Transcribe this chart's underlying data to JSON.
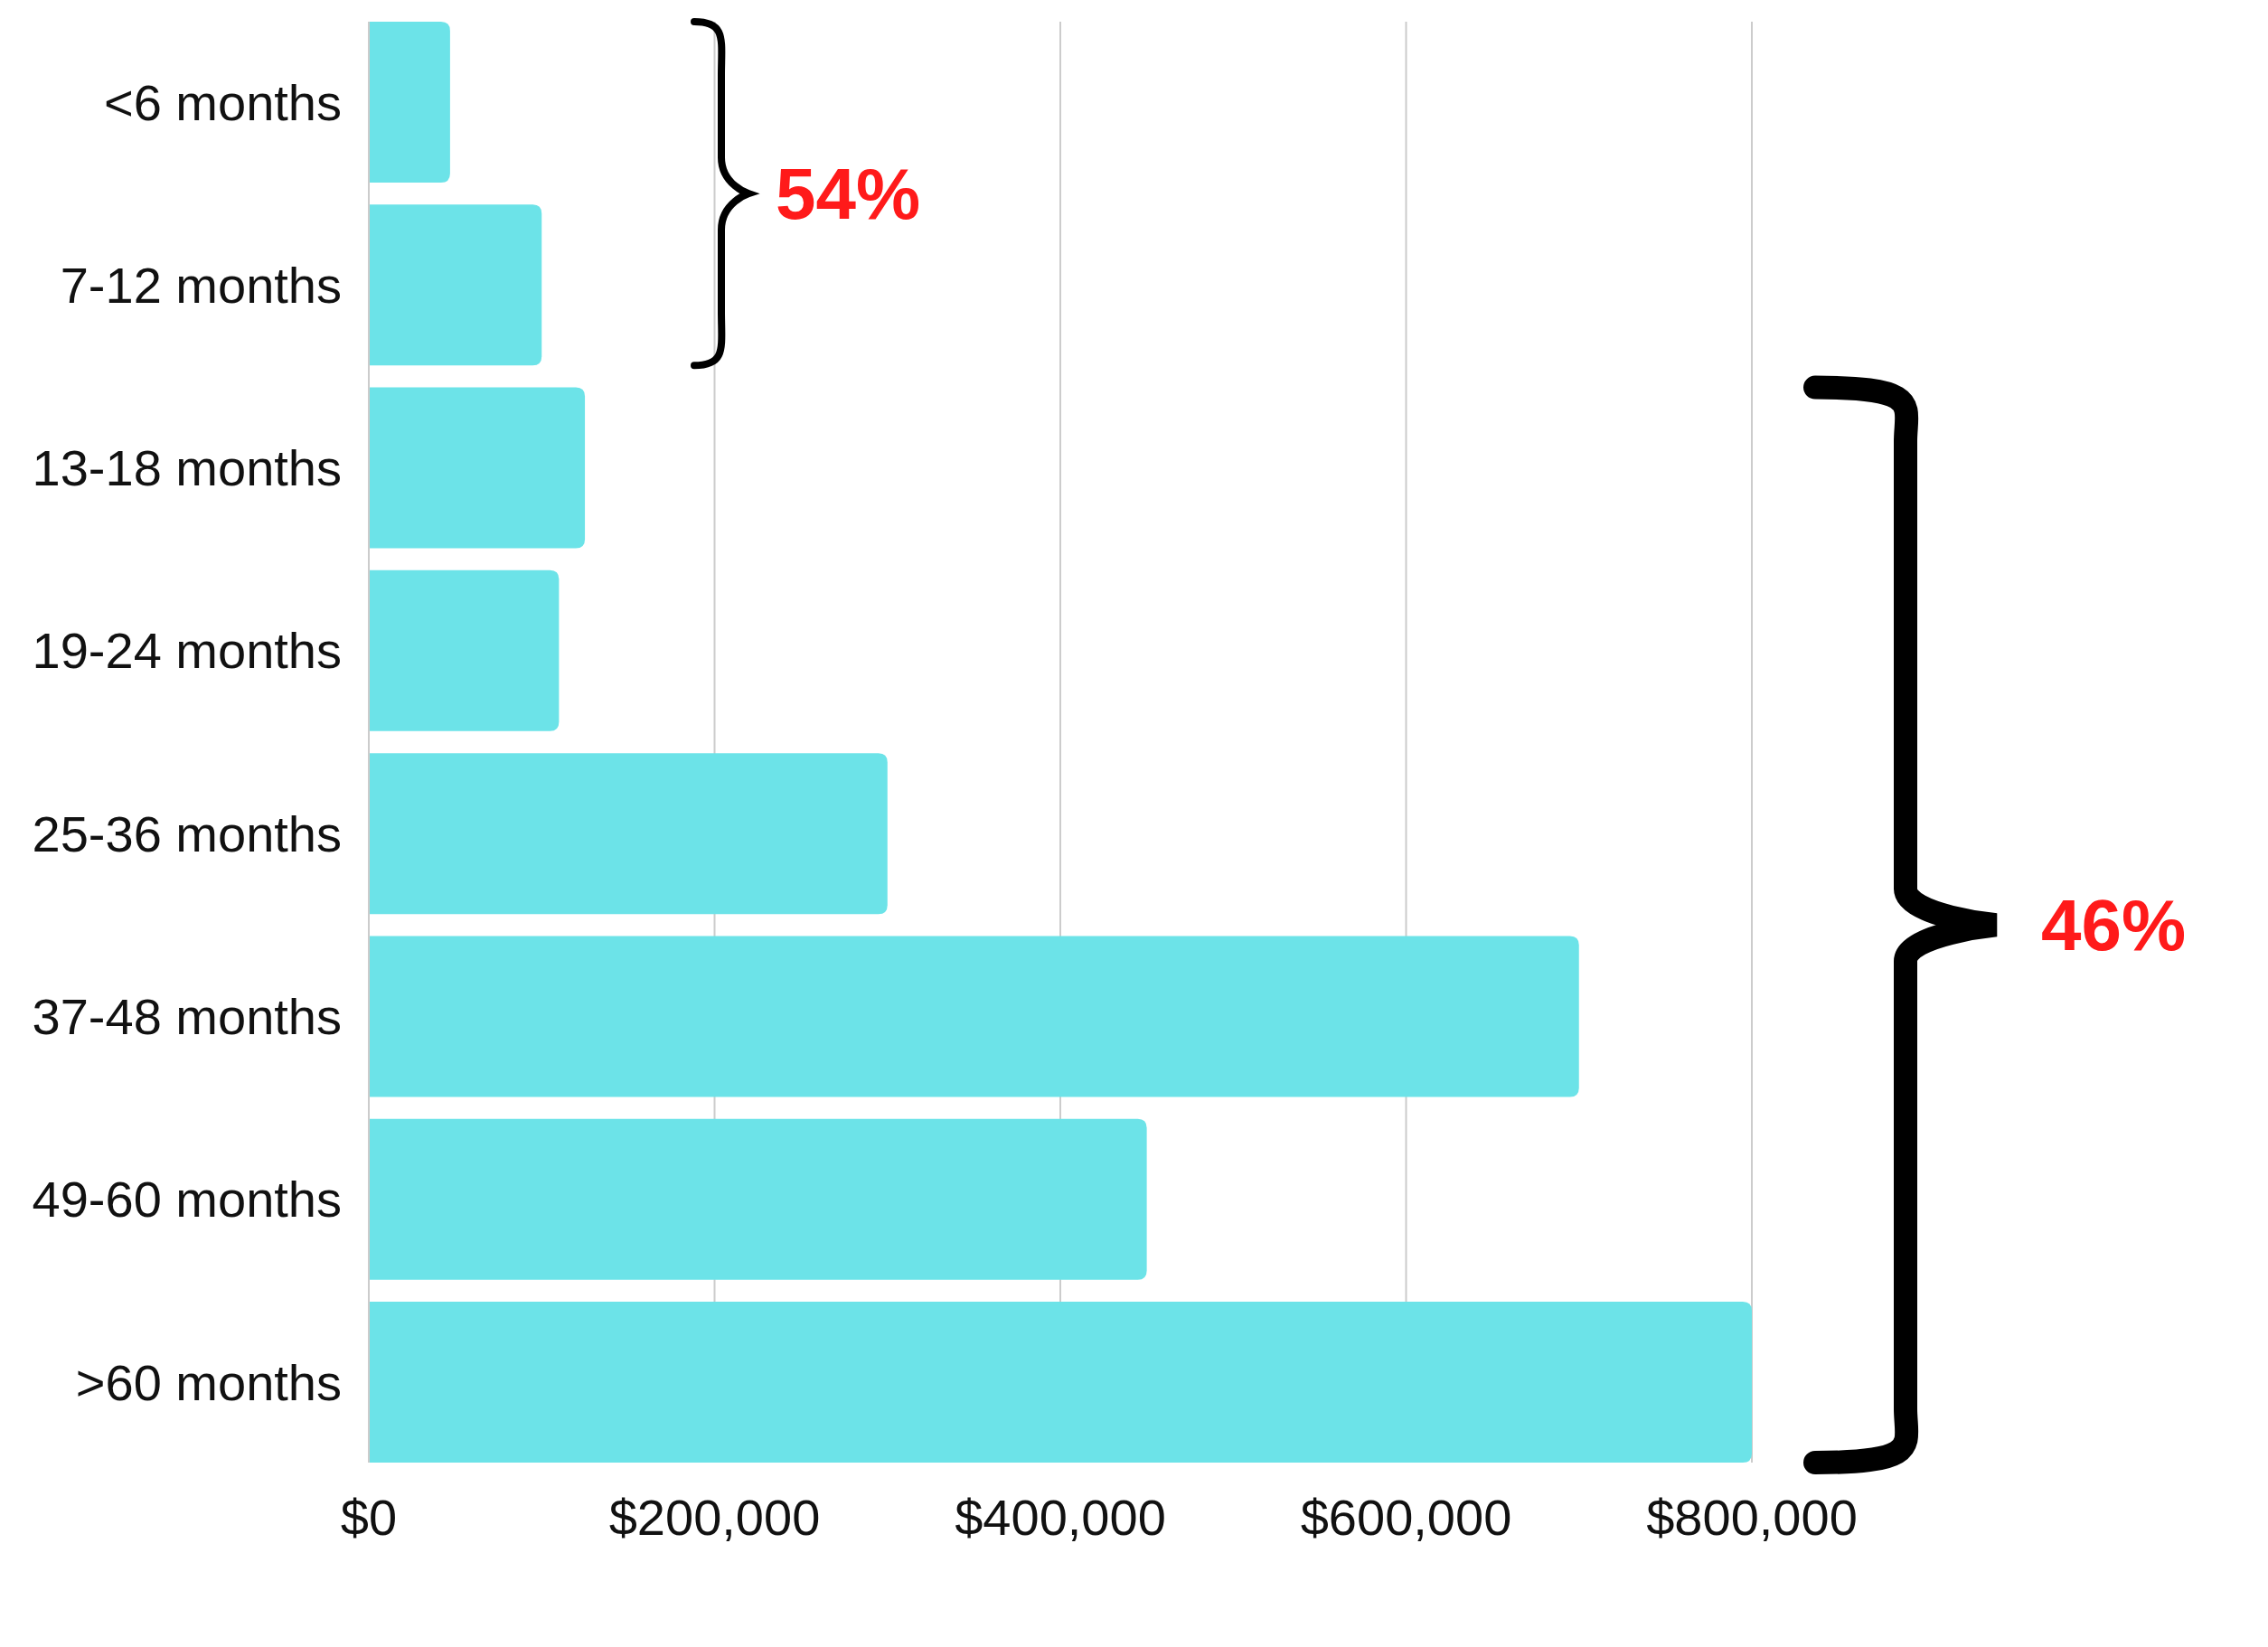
{
  "chart_data": {
    "type": "bar",
    "orientation": "horizontal",
    "categories": [
      "<6 months",
      "7-12 months",
      "13-18 months",
      "19-24 months",
      "25-36 months",
      "37-48 months",
      "49-60 months",
      ">60 months"
    ],
    "values": [
      47000,
      100000,
      125000,
      110000,
      300000,
      700000,
      450000,
      800000
    ],
    "color": "#6ce3e8",
    "xlim": [
      0,
      800000
    ],
    "xticks": [
      {
        "value": 0,
        "label": "$0"
      },
      {
        "value": 200000,
        "label": "$200,000"
      },
      {
        "value": 400000,
        "label": "$400,000"
      },
      {
        "value": 600000,
        "label": "$600,000"
      },
      {
        "value": 800000,
        "label": "$800,000"
      }
    ],
    "grid": "x",
    "annotations": [
      "54%",
      "46%"
    ]
  }
}
